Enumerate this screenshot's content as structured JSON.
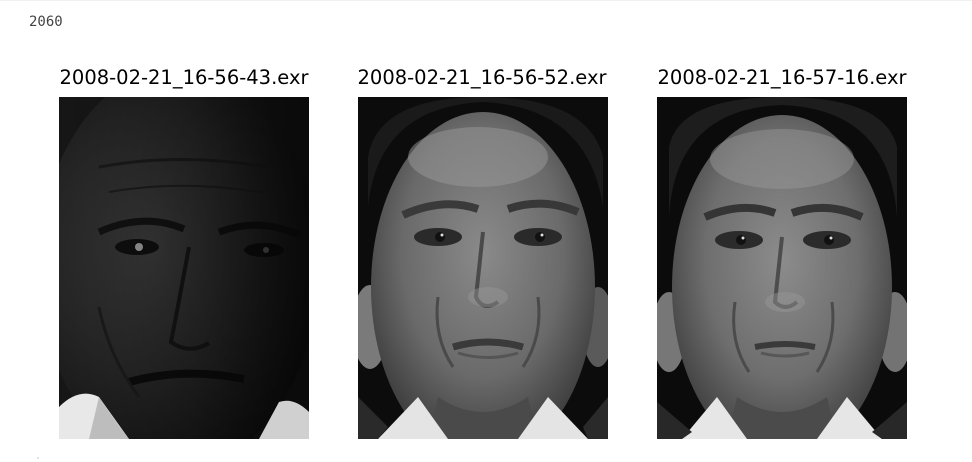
{
  "cell": {
    "output_text": "2060"
  },
  "figure": {
    "panels": [
      {
        "title": "2008-02-21_16-56-43.exr",
        "image_kind": "grayscale-face-photo",
        "exposure": "dark"
      },
      {
        "title": "2008-02-21_16-56-52.exr",
        "image_kind": "grayscale-face-photo",
        "exposure": "side-lit"
      },
      {
        "title": "2008-02-21_16-57-16.exr",
        "image_kind": "grayscale-face-photo",
        "exposure": "front-lit"
      }
    ]
  }
}
